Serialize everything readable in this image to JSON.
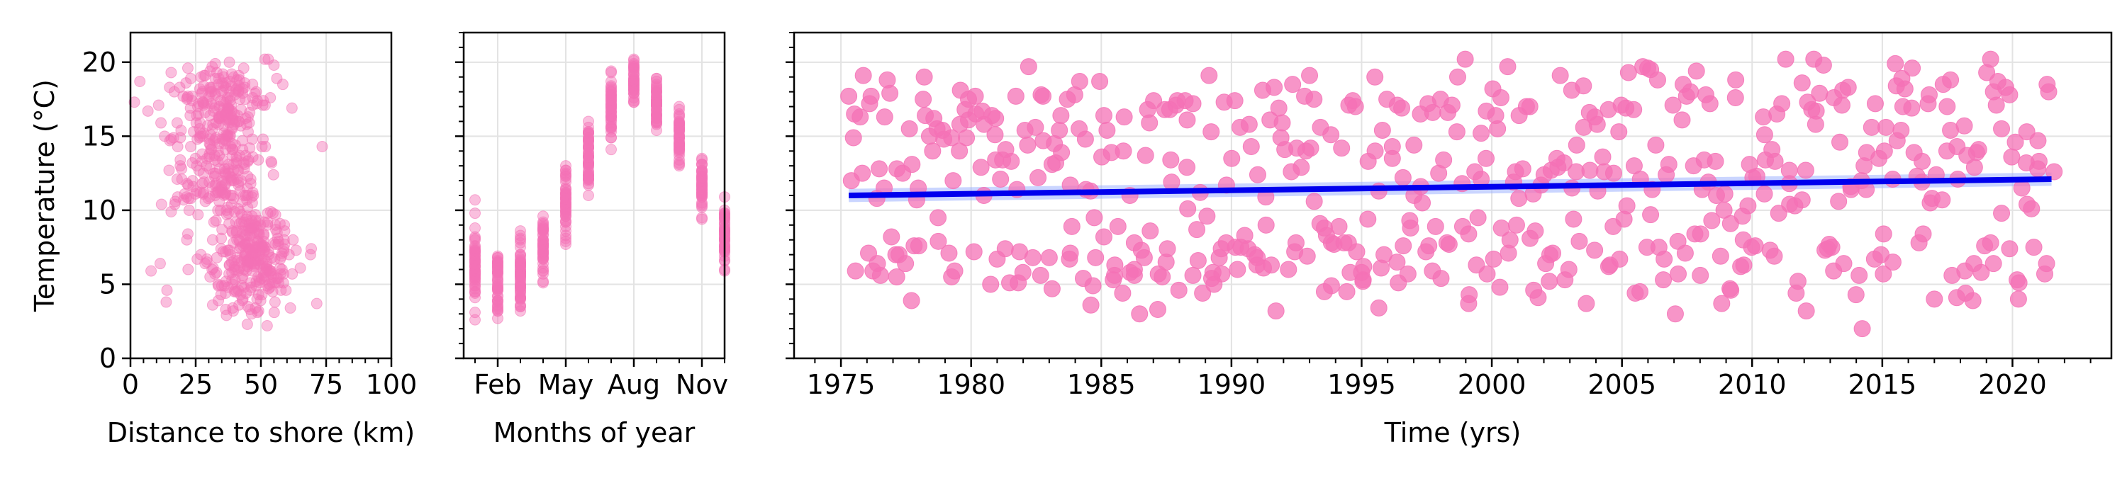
{
  "colors": {
    "points": "#f472b6",
    "fit_line": "#0000ee",
    "fit_band": "#9fb3ff",
    "grid": "#e3e3e3",
    "axis": "#000000"
  },
  "chart_data": [
    {
      "id": "distance",
      "type": "scatter",
      "xlabel": "Distance to shore (km)",
      "ylabel": "Temperature (°C)",
      "xlim": [
        0,
        100
      ],
      "ylim": [
        0,
        22
      ],
      "xticks": [
        0,
        25,
        50,
        75,
        100
      ],
      "xtick_labels": [
        "0",
        "25",
        "50",
        "75",
        "100"
      ],
      "yticks": [
        0,
        5,
        10,
        15,
        20
      ],
      "ytick_labels": [
        "0",
        "5",
        "10",
        "15",
        "20"
      ],
      "grid": true,
      "series": [
        {
          "marker_alpha": 0.45,
          "x": [],
          "y": []
        }
      ]
    },
    {
      "id": "months",
      "type": "scatter",
      "xlabel": "Months of year",
      "ylabel": "",
      "xlim": [
        0.5,
        12.0
      ],
      "ylim": [
        0,
        22
      ],
      "xticks": [
        2,
        5,
        8,
        11
      ],
      "xtick_labels": [
        "Feb",
        "May",
        "Aug",
        "Nov"
      ],
      "yticks": [
        0,
        5,
        10,
        15,
        20
      ],
      "ytick_labels": [
        "",
        "",
        "",
        "",
        ""
      ],
      "grid": true,
      "series": [
        {
          "marker_alpha": 0.45,
          "x": [],
          "y": []
        }
      ]
    },
    {
      "id": "time",
      "type": "scatter",
      "xlabel": "Time (yrs)",
      "ylabel": "",
      "xlim": [
        1973.2,
        2023.8
      ],
      "ylim": [
        0,
        22
      ],
      "xticks": [
        1975,
        1980,
        1985,
        1990,
        1995,
        2000,
        2005,
        2010,
        2015,
        2020
      ],
      "xtick_labels": [
        "1975",
        "1980",
        "1985",
        "1990",
        "1995",
        "2000",
        "2005",
        "2010",
        "2015",
        "2020"
      ],
      "yticks": [
        0,
        5,
        10,
        15,
        20
      ],
      "ytick_labels": [
        "",
        "",
        "",
        "",
        ""
      ],
      "grid": true,
      "series": [
        {
          "marker_alpha": 0.75,
          "x": [],
          "y": []
        }
      ],
      "trend": {
        "x": [
          1975.3,
          2021.5
        ],
        "y": [
          11.0,
          12.1
        ]
      }
    }
  ]
}
